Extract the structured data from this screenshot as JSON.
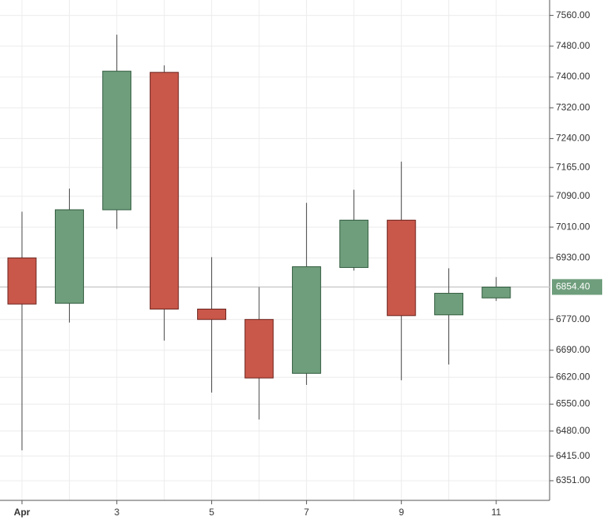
{
  "chart_data": {
    "type": "candlestick",
    "categories": [
      "Apr",
      null,
      "3",
      null,
      "5",
      null,
      "7",
      null,
      "9",
      null,
      "11"
    ],
    "open": [
      6930,
      6812,
      7055,
      7412,
      6797,
      6770,
      6630,
      6905,
      7028,
      6782,
      6826
    ],
    "high": [
      7050,
      7110,
      7510,
      7430,
      6932,
      6854,
      7073,
      7107,
      7180,
      6903,
      6880
    ],
    "low": [
      6430,
      6762,
      7005,
      6715,
      6580,
      6510,
      6600,
      6897,
      6612,
      6653,
      6818
    ],
    "close": [
      6810,
      7055,
      7415,
      6797,
      6770,
      6618,
      6907,
      7028,
      6780,
      6838,
      6854
    ],
    "up_color": "#6f9e7d",
    "down_color": "#c9574a",
    "ylim": [
      6300,
      7600
    ],
    "yticks": [
      {
        "value": 7560,
        "label": "7560.00"
      },
      {
        "value": 7480,
        "label": "7480.00"
      },
      {
        "value": 7400,
        "label": "7400.00"
      },
      {
        "value": 7320,
        "label": "7320.00"
      },
      {
        "value": 7240,
        "label": "7240.00"
      },
      {
        "value": 7165,
        "label": "7165.00"
      },
      {
        "value": 7090,
        "label": "7090.00"
      },
      {
        "value": 7010,
        "label": "7010.00"
      },
      {
        "value": 6930,
        "label": "6930.00"
      },
      {
        "value": 6770,
        "label": "6770.00"
      },
      {
        "value": 6690,
        "label": "6690.00"
      },
      {
        "value": 6620,
        "label": "6620.00"
      },
      {
        "value": 6550,
        "label": "6550.00"
      },
      {
        "value": 6480,
        "label": "6480.00"
      },
      {
        "value": 6415,
        "label": "6415.00"
      },
      {
        "value": 6351,
        "label": "6351.00"
      }
    ],
    "last_price": {
      "value": 6854.4,
      "label": "6854.40"
    },
    "grid": true
  }
}
